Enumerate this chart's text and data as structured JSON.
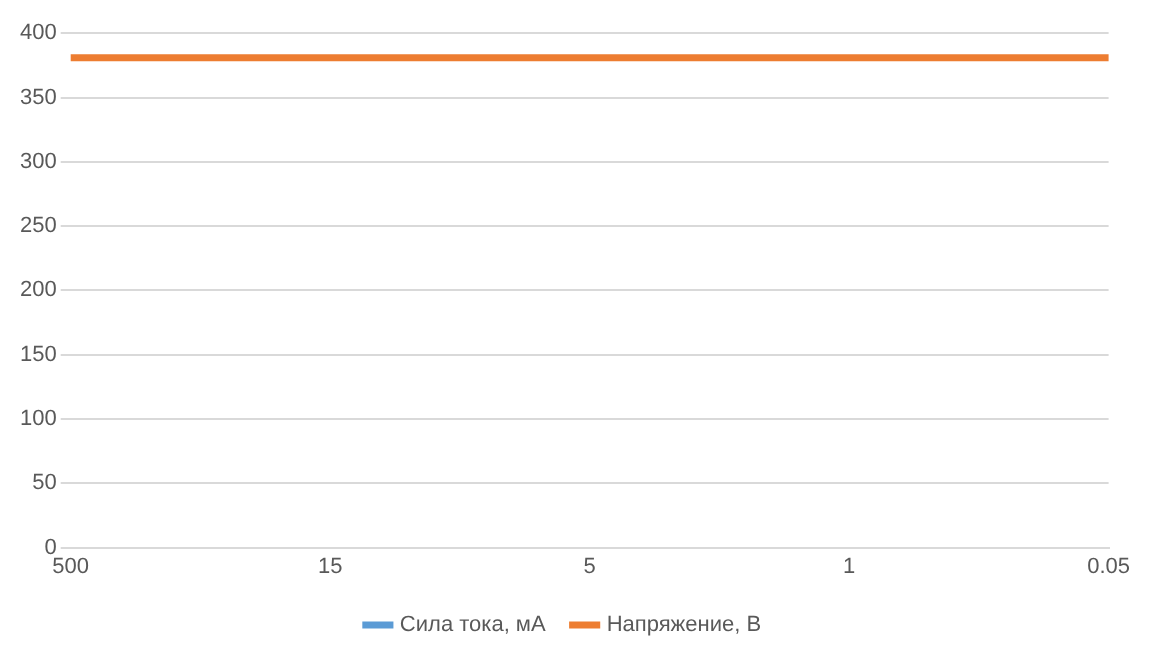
{
  "chart_data": {
    "type": "line",
    "categories": [
      "500",
      "15",
      "5",
      "1",
      "0.05"
    ],
    "series": [
      {
        "name": "Сила тока, мА",
        "color": "#5b9bd5",
        "values": [
          null,
          null,
          null,
          null,
          null
        ]
      },
      {
        "name": "Напряжение, В",
        "color": "#ed7d31",
        "values": [
          381,
          381,
          381,
          381,
          381
        ]
      }
    ],
    "ylim": [
      0,
      400
    ],
    "yticks": [
      0,
      50,
      100,
      150,
      200,
      250,
      300,
      350,
      400
    ],
    "grid": "y",
    "legend": "bottom",
    "marker": "none"
  }
}
